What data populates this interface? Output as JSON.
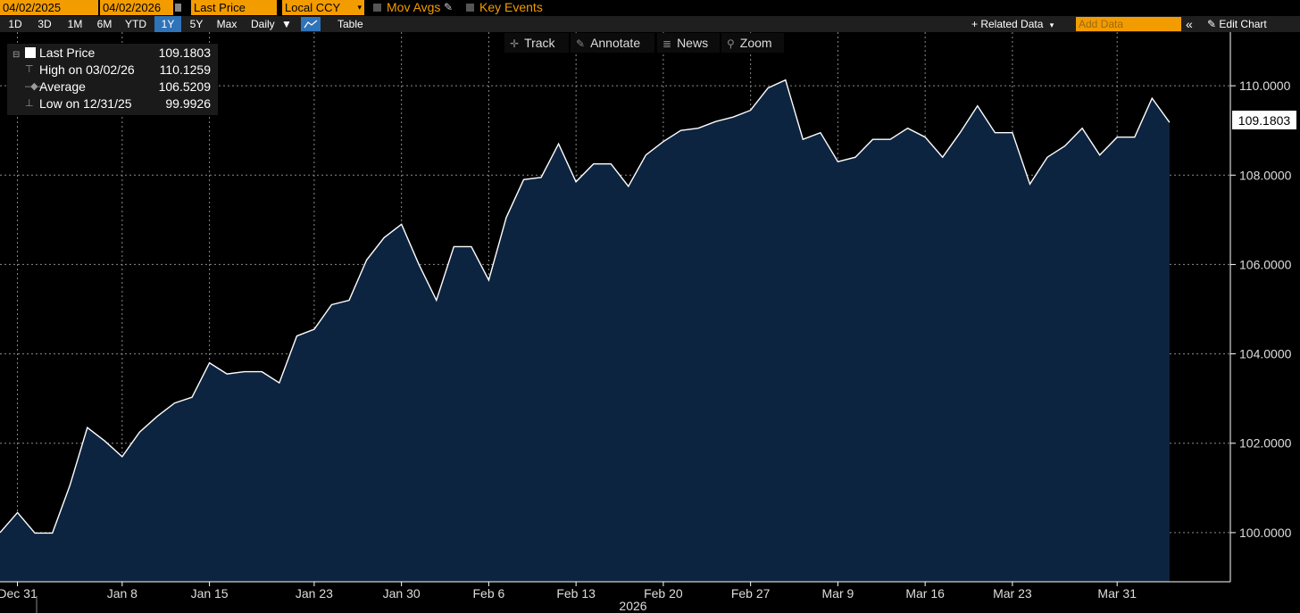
{
  "toolbar": {
    "start_date": "04/02/2025",
    "date_dash": "-",
    "end_date": "04/02/2026",
    "field": "Last Price",
    "currency": "Local CCY",
    "mov_avgs": "Mov Avgs",
    "key_events": "Key Events"
  },
  "ranges": [
    "1D",
    "3D",
    "1M",
    "6M",
    "YTD",
    "1Y",
    "5Y",
    "Max"
  ],
  "active_range": "1Y",
  "frequency": "Daily",
  "table_label": "Table",
  "related_data": "+ Related Data",
  "add_data_placeholder": "Add Data",
  "collapse_glyph": "«",
  "edit_chart": "Edit Chart",
  "tools": {
    "track": "Track",
    "annotate": "Annotate",
    "news": "News",
    "zoom": "Zoom"
  },
  "legend": {
    "last_label": "Last Price",
    "last_value": "109.1803",
    "high_label": "High on 03/02/26",
    "high_value": "110.1259",
    "avg_label": "Average",
    "avg_value": "106.5209",
    "low_label": "Low on 12/31/25",
    "low_value": "99.9926"
  },
  "chart_data": {
    "type": "area",
    "series": [
      {
        "name": "Last Price",
        "values": [
          100.0,
          100.45,
          99.99,
          99.99,
          101.05,
          102.35,
          102.05,
          101.7,
          102.25,
          102.6,
          102.9,
          103.03,
          103.8,
          103.55,
          103.6,
          103.6,
          103.35,
          104.4,
          104.55,
          105.1,
          105.2,
          106.1,
          106.6,
          106.9,
          106.0,
          105.2,
          106.4,
          106.4,
          105.65,
          107.05,
          107.9,
          107.95,
          108.7,
          107.85,
          108.25,
          108.25,
          107.75,
          108.45,
          108.75,
          109.0,
          109.05,
          109.2,
          109.3,
          109.45,
          109.95,
          110.13,
          108.8,
          108.95,
          108.3,
          108.4,
          108.8,
          108.8,
          109.05,
          108.85,
          108.4,
          108.95,
          109.55,
          108.95,
          108.95,
          107.8,
          108.4,
          108.65,
          109.05,
          108.45,
          108.85,
          108.85,
          109.72,
          109.18
        ]
      }
    ],
    "x_labels": [
      "Dec 31",
      "Jan 8",
      "Jan 15",
      "Jan 23",
      "Jan 30",
      "Feb 6",
      "Feb 13",
      "Feb 20",
      "Feb 27",
      "Mar 9",
      "Mar 16",
      "Mar 23",
      "Mar 31"
    ],
    "x_label_index": [
      1,
      7,
      12,
      18,
      23,
      28,
      33,
      38,
      43,
      48,
      53,
      58,
      64
    ],
    "year_label": "2026",
    "y_ticks": [
      "100.0000",
      "102.0000",
      "104.0000",
      "106.0000",
      "108.0000",
      "110.0000"
    ],
    "ylim": [
      98.9,
      111.2
    ],
    "last_value_label": "109.1803",
    "colors": {
      "fill": "#0d2440",
      "line": "#ffffff",
      "grid": "#8a8a8a",
      "accent": "#f39c00"
    },
    "grid": true,
    "legend_position": "top-left"
  }
}
